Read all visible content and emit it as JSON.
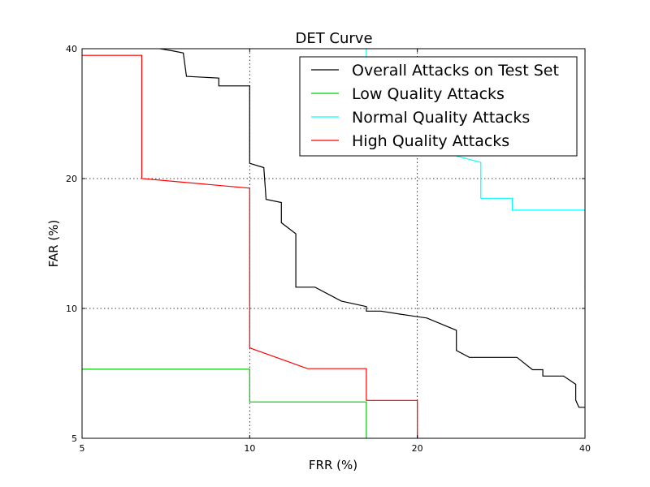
{
  "chart_data": {
    "type": "line",
    "title": "DET Curve",
    "xlabel": "FRR (%)",
    "ylabel": "FAR (%)",
    "xscale": "log",
    "yscale": "log",
    "xlim": [
      5,
      40
    ],
    "ylim": [
      5,
      40
    ],
    "xticks": [
      5,
      10,
      20,
      40
    ],
    "yticks": [
      5,
      10,
      20,
      40
    ],
    "grid": true,
    "legend_position": "upper right",
    "series": [
      {
        "name": "Overall Attacks on Test Set",
        "color": "#000000",
        "points": [
          [
            6.9,
            40
          ],
          [
            7.3,
            39.5
          ],
          [
            7.6,
            39.1
          ],
          [
            7.7,
            34.5
          ],
          [
            8.8,
            34.2
          ],
          [
            8.8,
            32.8
          ],
          [
            10,
            32.8
          ],
          [
            10,
            21.7
          ],
          [
            10.6,
            21.2
          ],
          [
            10.7,
            17.9
          ],
          [
            11.4,
            17.6
          ],
          [
            11.4,
            15.8
          ],
          [
            12.1,
            14.9
          ],
          [
            12.1,
            11.2
          ],
          [
            13.1,
            11.2
          ],
          [
            14.6,
            10.4
          ],
          [
            16.2,
            10.1
          ],
          [
            16.2,
            9.86
          ],
          [
            16.8,
            9.86
          ],
          [
            17.2,
            9.86
          ],
          [
            18.6,
            9.7
          ],
          [
            20.8,
            9.5
          ],
          [
            23.5,
            8.9
          ],
          [
            23.5,
            7.99
          ],
          [
            24.8,
            7.7
          ],
          [
            30.2,
            7.7
          ],
          [
            32.2,
            7.21
          ],
          [
            33.6,
            7.21
          ],
          [
            33.6,
            6.97
          ],
          [
            36.6,
            6.97
          ],
          [
            38.5,
            6.67
          ],
          [
            38.5,
            6.13
          ],
          [
            39,
            5.9
          ],
          [
            40,
            5.9
          ]
        ]
      },
      {
        "name": "Low Quality Attacks",
        "color": "#00cc00",
        "points": [
          [
            5,
            7.23
          ],
          [
            10,
            7.23
          ],
          [
            10,
            6.07
          ],
          [
            16.2,
            6.07
          ],
          [
            16.2,
            5
          ]
        ]
      },
      {
        "name": "Normal Quality Attacks",
        "color": "#00ffff",
        "points": [
          [
            16.2,
            40
          ],
          [
            16.2,
            37
          ],
          [
            17.5,
            36.5
          ],
          [
            19.2,
            34.2
          ],
          [
            20.2,
            33
          ],
          [
            21.2,
            30.6
          ],
          [
            23.4,
            28.5
          ],
          [
            23.4,
            22.6
          ],
          [
            26,
            21.8
          ],
          [
            26,
            18
          ],
          [
            29.6,
            18
          ],
          [
            29.6,
            16.9
          ],
          [
            40,
            16.9
          ],
          [
            40,
            11
          ]
        ]
      },
      {
        "name": "High Quality Attacks",
        "color": "#ff0000",
        "points": [
          [
            5,
            38.6
          ],
          [
            6.4,
            38.6
          ],
          [
            6.4,
            20
          ],
          [
            10,
            19
          ],
          [
            10,
            8.1
          ],
          [
            12.7,
            7.25
          ],
          [
            16.2,
            7.25
          ],
          [
            16.2,
            6.12
          ],
          [
            20,
            6.12
          ],
          [
            20,
            5
          ]
        ]
      }
    ]
  }
}
